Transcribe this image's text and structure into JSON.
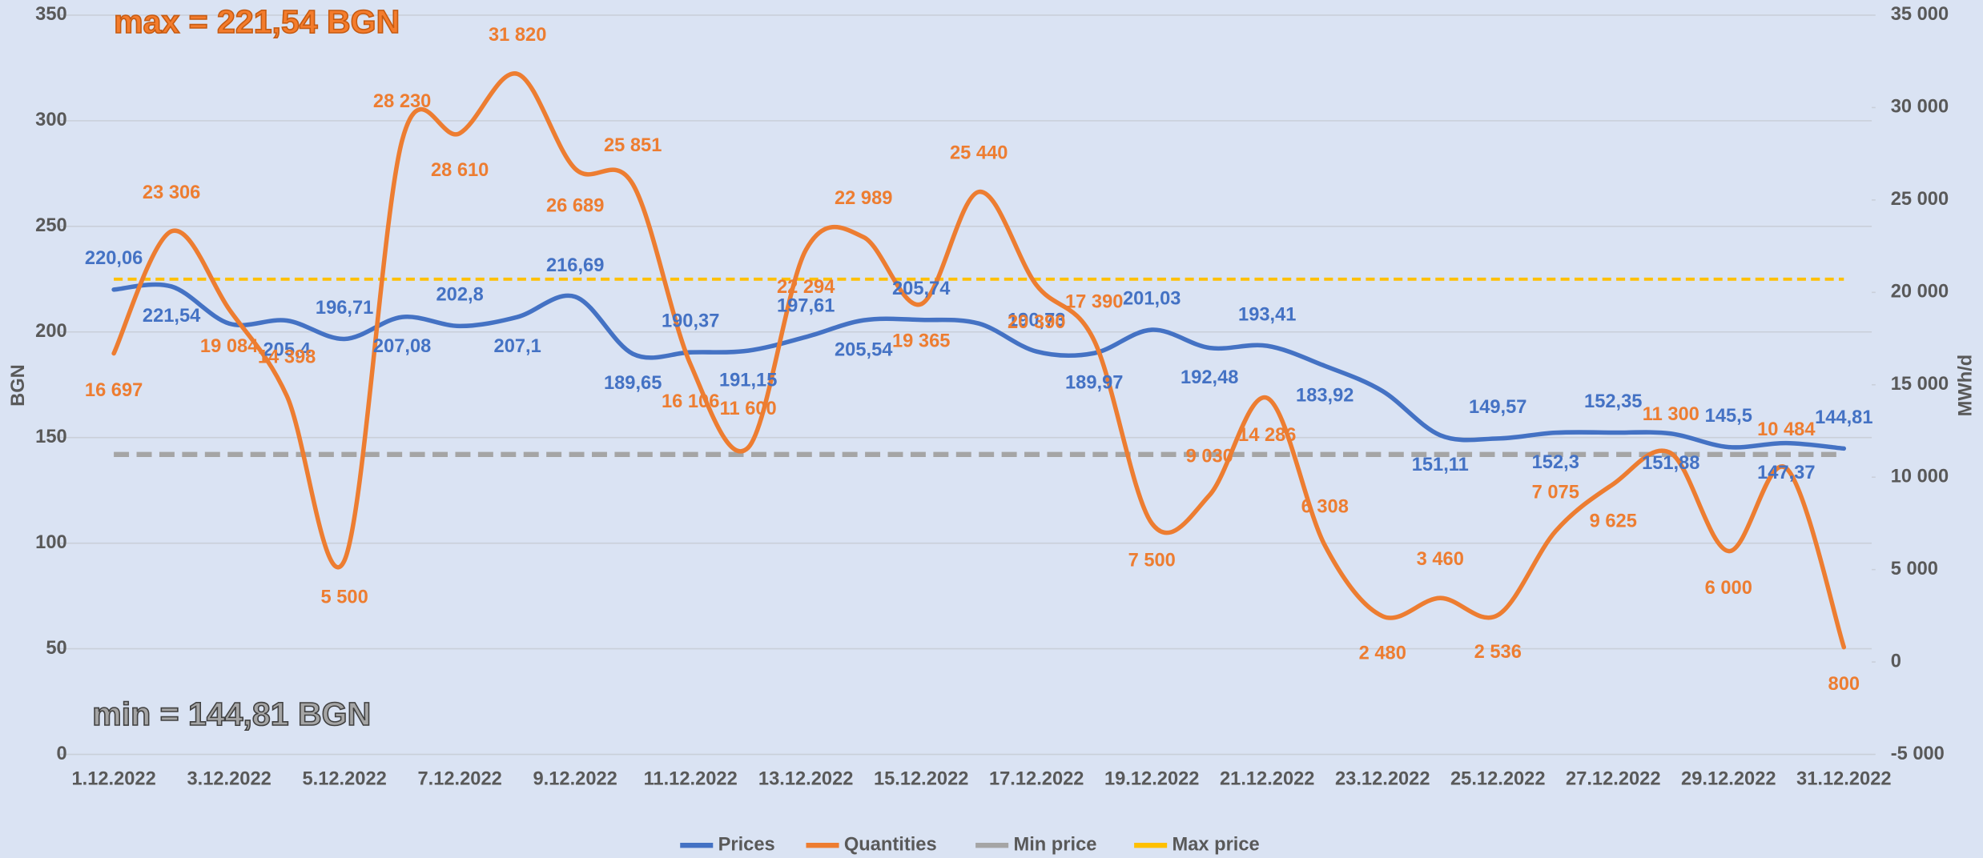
{
  "chart_data": {
    "type": "line",
    "annotations": [
      "max = 221,54 BGN",
      "min = 144,81 BGN"
    ],
    "ylabel": "BGN",
    "y2label": "MWh/d",
    "categories": [
      "1.12.2022",
      null,
      "3.12.2022",
      null,
      "5.12.2022",
      null,
      "7.12.2022",
      null,
      "9.12.2022",
      null,
      "11.12.2022",
      null,
      "13.12.2022",
      null,
      "15.12.2022",
      null,
      "17.12.2022",
      null,
      "19.12.2022",
      null,
      "21.12.2022",
      null,
      "23.12.2022",
      null,
      "25.12.2022",
      null,
      "27.12.2022",
      null,
      "29.12.2022",
      null,
      "31.12.2022"
    ],
    "series": [
      {
        "name": "Prices",
        "color": "#4472c4",
        "values": [
          220.06,
          221.54,
          204,
          205.4,
          196.71,
          207.08,
          202.8,
          207.1,
          216.69,
          189.65,
          190.37,
          191.15,
          197.61,
          205.54,
          205.74,
          204,
          190.73,
          189.97,
          201.03,
          192.48,
          193.41,
          183.92,
          172,
          151.11,
          149.57,
          152.3,
          152.35,
          151.88,
          145.5,
          147.37,
          144.81
        ],
        "value_labels": [
          "220,06",
          "221,54",
          null,
          "205,4",
          "196,71",
          "207,08",
          "202,8",
          "207,1",
          "216,69",
          "189,65",
          "190,37",
          "191,15",
          "197,61",
          "205,54",
          "205,74",
          null,
          "190,73",
          "189,97",
          "201,03",
          "192,48",
          "193,41",
          "183,92",
          null,
          "151,11",
          "149,57",
          "152,3",
          "152,35",
          "151,88",
          "145,5",
          "147,37",
          "144,81"
        ]
      },
      {
        "name": "Quantities",
        "color": "#ed7d31",
        "axis": "y2",
        "values": [
          16697,
          23306,
          19084,
          14398,
          5500,
          28230,
          28610,
          31820,
          26689,
          25851,
          16106,
          11600,
          22294,
          22989,
          19365,
          25440,
          20390,
          17390,
          7500,
          9030,
          14286,
          6308,
          2480,
          3460,
          2536,
          7075,
          9625,
          11300,
          6000,
          10484,
          800
        ],
        "value_labels": [
          "16 697",
          "23 306",
          "19 084",
          "14 398",
          "5 500",
          "28 230",
          "28 610",
          "31 820",
          "26 689",
          "25 851",
          "16 106",
          "11 600",
          "22 294",
          "22 989",
          "19 365",
          "25 440",
          "20 390",
          "17 390",
          "7 500",
          "9 030",
          "14 286",
          "6 308",
          "2 480",
          "3 460",
          "2 536",
          "7 075",
          "9 625",
          "11 300",
          "6 000",
          "10 484",
          "800"
        ]
      },
      {
        "name": "Min price",
        "color": "#a5a5a5",
        "dashed": true,
        "values": [
          142,
          142,
          142,
          142,
          142,
          142,
          142,
          142,
          142,
          142,
          142,
          142,
          142,
          142,
          142,
          142,
          142,
          142,
          142,
          142,
          142,
          142,
          142,
          142,
          142,
          142,
          142,
          142,
          142,
          142,
          142
        ]
      },
      {
        "name": "Max price",
        "color": "#ffc000",
        "dashed": true,
        "values": [
          225,
          225,
          225,
          225,
          225,
          225,
          225,
          225,
          225,
          225,
          225,
          225,
          225,
          225,
          225,
          225,
          225,
          225,
          225,
          225,
          225,
          225,
          225,
          225,
          225,
          225,
          225,
          225,
          225,
          225,
          225
        ]
      }
    ],
    "ylim": [
      0,
      350
    ],
    "yticks": [
      0,
      50,
      100,
      150,
      200,
      250,
      300,
      350
    ],
    "y2lim": [
      -5000,
      35000
    ],
    "y2ticks": [
      {
        "value": -5000,
        "label": "-5 000"
      },
      0,
      {
        "value": 5000,
        "label": "5 000"
      },
      {
        "value": 10000,
        "label": "10 000"
      },
      {
        "value": 15000,
        "label": "15 000"
      },
      {
        "value": 20000,
        "label": "20 000"
      },
      {
        "value": 25000,
        "label": "25 000"
      },
      {
        "value": 30000,
        "label": "30 000"
      },
      {
        "value": 35000,
        "label": "35 000"
      }
    ],
    "grid": true,
    "legend": "bottom"
  }
}
